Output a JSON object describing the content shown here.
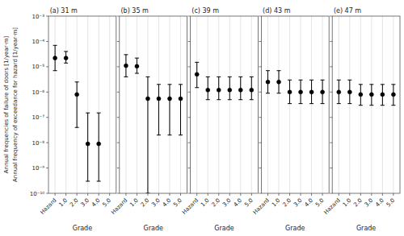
{
  "chart_data": [
    {
      "type": "errorbar",
      "title": "(a) 31 m",
      "xlabel": "Grade",
      "ylabel": [
        "Annual frequencies of failure of doors [1/year·m]",
        "Annual frequency of exceedance for hazard [1/year·m]"
      ],
      "categories": [
        "Hazard",
        "1.0",
        "2.0",
        "3.0",
        "4.0",
        "5.0"
      ],
      "values": [
        2.2e-05,
        2.2e-05,
        8e-07,
        9e-09,
        9e-09,
        null
      ],
      "lo": [
        7e-06,
        1.4e-05,
        4e-08,
        3e-10,
        3e-10,
        null
      ],
      "hi": [
        7e-05,
        4e-05,
        2.5e-06,
        1.5e-07,
        1.5e-07,
        null
      ],
      "color": "black",
      "log": "y",
      "grid": true,
      "ylim": [
        1e-10,
        0.001
      ],
      "yticks": [
        {
          "value": 1e-10,
          "label": "10⁻¹⁰"
        },
        {
          "value": 1e-09,
          "label": "10⁻⁹"
        },
        {
          "value": 1e-08,
          "label": "10⁻⁸"
        },
        {
          "value": 1e-07,
          "label": "10⁻⁷"
        },
        {
          "value": 1e-06,
          "label": "10⁻⁶"
        },
        {
          "value": 1e-05,
          "label": "10⁻⁵"
        },
        {
          "value": 0.0001,
          "label": "10⁻⁴"
        },
        {
          "value": 0.001,
          "label": "10⁻³"
        }
      ]
    },
    {
      "type": "errorbar",
      "title": "(b) 35 m",
      "xlabel": "Grade",
      "categories": [
        "Hazard",
        "1.0",
        "2.0",
        "3.0",
        "4.0",
        "5.0"
      ],
      "values": [
        1.1e-05,
        1.05e-05,
        5.5e-07,
        5.5e-07,
        5.5e-07,
        5.5e-07
      ],
      "lo": [
        4e-06,
        5.5e-06,
        1e-10,
        2e-08,
        2e-08,
        2e-08
      ],
      "hi": [
        3e-05,
        2.2e-05,
        4e-06,
        2e-06,
        2e-06,
        2e-06
      ],
      "color": "black",
      "log": "y",
      "grid": true,
      "tick_labels": "x",
      "ylim": [
        1e-10,
        0.001
      ],
      "yticks": [
        1e-10,
        1e-09,
        1e-08,
        1e-07,
        1e-06,
        1e-05,
        0.0001,
        0.001
      ]
    },
    {
      "type": "errorbar",
      "title": "(c) 39 m",
      "xlabel": "Grade",
      "categories": [
        "Hazard",
        "1.0",
        "2.0",
        "3.0",
        "4.0",
        "5.0"
      ],
      "values": [
        5e-06,
        1.2e-06,
        1.2e-06,
        1.2e-06,
        1.2e-06,
        1.2e-06
      ],
      "lo": [
        1.5e-06,
        5e-07,
        5e-07,
        5e-07,
        5e-07,
        5e-07
      ],
      "hi": [
        1.5e-05,
        4e-06,
        4e-06,
        4e-06,
        4e-06,
        4e-06
      ],
      "color": "black",
      "log": "y",
      "grid": true,
      "tick_labels": "x",
      "ylim": [
        1e-10,
        0.001
      ],
      "yticks": [
        1e-10,
        1e-09,
        1e-08,
        1e-07,
        1e-06,
        1e-05,
        0.0001,
        0.001
      ]
    },
    {
      "type": "errorbar",
      "title": "(d) 43 m",
      "xlabel": "Grade",
      "categories": [
        "Hazard",
        "1.0",
        "2.0",
        "3.0",
        "4.0",
        "5.0"
      ],
      "values": [
        2.5e-06,
        2.5e-06,
        1e-06,
        1e-06,
        1e-06,
        1e-06
      ],
      "lo": [
        9e-07,
        9e-07,
        3.5e-07,
        3.5e-07,
        3.5e-07,
        3.5e-07
      ],
      "hi": [
        7e-06,
        7e-06,
        3e-06,
        3e-06,
        3e-06,
        3e-06
      ],
      "color": "black",
      "log": "y",
      "grid": true,
      "tick_labels": "x",
      "ylim": [
        1e-10,
        0.001
      ],
      "yticks": [
        1e-10,
        1e-09,
        1e-08,
        1e-07,
        1e-06,
        1e-05,
        0.0001,
        0.001
      ]
    },
    {
      "type": "errorbar",
      "title": "(e) 47 m",
      "xlabel": "Grade",
      "categories": [
        "Hazard",
        "1.0",
        "2.0",
        "3.0",
        "4.0",
        "5.0"
      ],
      "values": [
        1e-06,
        1e-06,
        8e-07,
        8e-07,
        8e-07,
        8e-07
      ],
      "lo": [
        3.5e-07,
        3.5e-07,
        3e-07,
        3e-07,
        3e-07,
        3e-07
      ],
      "hi": [
        3e-06,
        3e-06,
        2e-06,
        2e-06,
        2e-06,
        2e-06
      ],
      "color": "black",
      "log": "y",
      "grid": true,
      "tick_labels": "x",
      "ylim": [
        1e-10,
        0.001
      ],
      "yticks": [
        1e-10,
        1e-09,
        1e-08,
        1e-07,
        1e-06,
        1e-05,
        0.0001,
        0.001
      ]
    }
  ]
}
